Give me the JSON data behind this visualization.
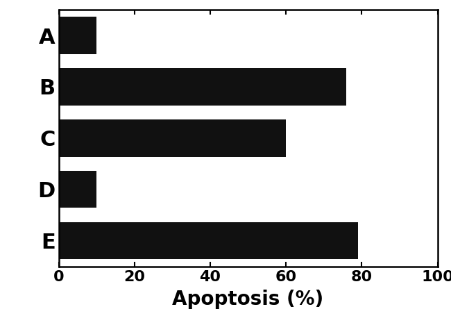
{
  "categories": [
    "E",
    "D",
    "C",
    "B",
    "A"
  ],
  "values": [
    79,
    10,
    60,
    76,
    10
  ],
  "bar_color": "#111111",
  "xlabel": "Apoptosis (%)",
  "xlim": [
    0,
    100
  ],
  "xticks": [
    0,
    20,
    40,
    60,
    80,
    100
  ],
  "bar_height": 0.72,
  "xlabel_fontsize": 20,
  "tick_fontsize": 16,
  "label_fontsize": 22,
  "background_color": "#ffffff"
}
